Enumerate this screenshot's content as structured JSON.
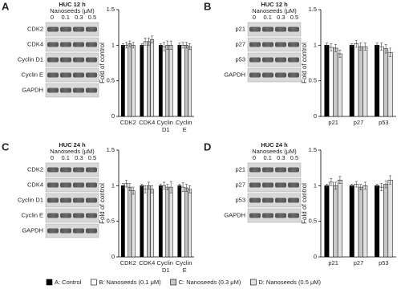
{
  "legend": [
    {
      "name": "A: Control",
      "color": "#000000"
    },
    {
      "name": "B: Nanoseeds (0.1 μM)",
      "color": "#ffffff"
    },
    {
      "name": "C: Nanoseeds (0.3 μM)",
      "color": "#c8c8c8"
    },
    {
      "name": "D: Nanoseeds (0.5 μM)",
      "color": "#e2e2e2"
    }
  ],
  "chart_data": [
    {
      "type": "bar",
      "panel": "A",
      "blot": {
        "title": "HUC 12 h",
        "subtitle": "Nanoseeds (μM)",
        "doses": [
          "0",
          "0.1",
          "0.3",
          "0.5"
        ],
        "proteins": [
          "CDK2",
          "CDK4",
          "Cyclin D1",
          "Cyclin E",
          "GAPDH"
        ]
      },
      "y_label": "Fold of control",
      "categories": [
        "CDK2",
        "CDK4",
        "Cyclin D1",
        "Cyclin E"
      ],
      "ylim": [
        0,
        1.5
      ],
      "yticks": [
        0,
        0.5,
        1,
        1.5
      ],
      "series": [
        {
          "values": [
            1,
            1,
            1,
            1
          ],
          "errors": [
            0.02,
            0.02,
            0.02,
            0.03
          ]
        },
        {
          "values": [
            1.0,
            1.05,
            0.98,
            1.0
          ],
          "errors": [
            0.04,
            0.05,
            0.06,
            0.04
          ]
        },
        {
          "values": [
            1.02,
            1.05,
            1.0,
            1.0
          ],
          "errors": [
            0.04,
            0.05,
            0.06,
            0.04
          ]
        },
        {
          "values": [
            1.0,
            1.08,
            1.0,
            0.98
          ],
          "errors": [
            0.04,
            0.05,
            0.06,
            0.04
          ]
        }
      ]
    },
    {
      "type": "bar",
      "panel": "B",
      "blot": {
        "title": "HUC 12 h",
        "subtitle": "Nanoseeds (μM)",
        "doses": [
          "0",
          "0.1",
          "0.3",
          "0.5"
        ],
        "proteins": [
          "p21",
          "p27",
          "p53",
          "GAPDH"
        ]
      },
      "y_label": "Fold of control",
      "categories": [
        "p21",
        "p27",
        "p53"
      ],
      "ylim": [
        0,
        1.5
      ],
      "yticks": [
        0,
        0.5,
        1,
        1.5
      ],
      "series": [
        {
          "values": [
            1,
            1,
            1
          ],
          "errors": [
            0.03,
            0.02,
            0.03
          ]
        },
        {
          "values": [
            0.97,
            1.02,
            0.98
          ],
          "errors": [
            0.05,
            0.05,
            0.05
          ]
        },
        {
          "values": [
            0.96,
            0.98,
            0.95
          ],
          "errors": [
            0.05,
            0.05,
            0.06
          ]
        },
        {
          "values": [
            0.88,
            0.98,
            0.9
          ],
          "errors": [
            0.05,
            0.05,
            0.06
          ]
        }
      ]
    },
    {
      "type": "bar",
      "panel": "C",
      "blot": {
        "title": "HUC 24 h",
        "subtitle": "Nanoseeds (μM)",
        "doses": [
          "0",
          "0.1",
          "0.3",
          "0.5"
        ],
        "proteins": [
          "CDK2",
          "CDK4",
          "Cyclin D1",
          "Cyclin E",
          "GAPDH"
        ]
      },
      "y_label": "Fold of control",
      "categories": [
        "CDK2",
        "CDK4",
        "Cyclin D1",
        "Cyclin E"
      ],
      "ylim": [
        0,
        1.5
      ],
      "yticks": [
        0,
        0.5,
        1,
        1.5
      ],
      "series": [
        {
          "values": [
            1,
            1,
            1,
            1
          ],
          "errors": [
            0.03,
            0.02,
            0.02,
            0.02
          ]
        },
        {
          "values": [
            1.03,
            0.95,
            1.0,
            0.98
          ],
          "errors": [
            0.05,
            0.05,
            0.05,
            0.06
          ]
        },
        {
          "values": [
            0.98,
            1.0,
            0.98,
            0.97
          ],
          "errors": [
            0.05,
            0.05,
            0.04,
            0.05
          ]
        },
        {
          "values": [
            0.93,
            0.95,
            0.98,
            0.95
          ],
          "errors": [
            0.05,
            0.05,
            0.08,
            0.05
          ]
        }
      ]
    },
    {
      "type": "bar",
      "panel": "D",
      "blot": {
        "title": "HUC 24 h",
        "subtitle": "Nanoseeds (μM)",
        "doses": [
          "0",
          "0.1",
          "0.3",
          "0.5"
        ],
        "proteins": [
          "p21",
          "p27",
          "p53",
          "GAPDH"
        ]
      },
      "y_label": "Fold of control",
      "categories": [
        "p21",
        "p27",
        "p53"
      ],
      "ylim": [
        0,
        1.5
      ],
      "yticks": [
        0,
        0.5,
        1,
        1.5
      ],
      "series": [
        {
          "values": [
            1,
            1,
            1
          ],
          "errors": [
            0.02,
            0.02,
            0.02
          ]
        },
        {
          "values": [
            1.05,
            1.02,
            0.98
          ],
          "errors": [
            0.05,
            0.04,
            0.05
          ]
        },
        {
          "values": [
            1.0,
            0.98,
            1.02
          ],
          "errors": [
            0.05,
            0.04,
            0.05
          ]
        },
        {
          "values": [
            1.08,
            1.0,
            1.08
          ],
          "errors": [
            0.05,
            0.05,
            0.06
          ]
        }
      ]
    }
  ]
}
